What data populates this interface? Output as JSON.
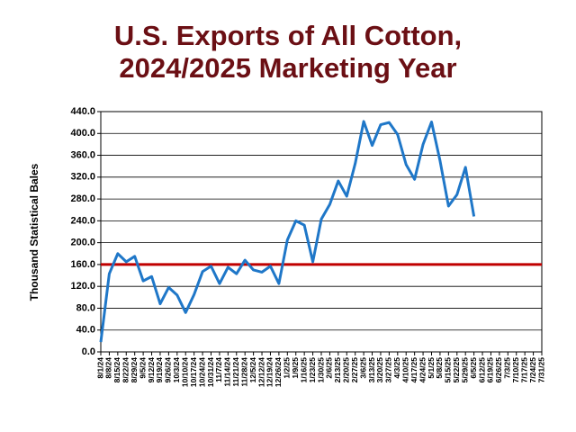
{
  "chart_data": {
    "type": "line",
    "title": [
      "U.S. Exports of All Cotton,",
      "2024/2025 Marketing Year"
    ],
    "y_label": "Thousand Statistical Bales",
    "categories": [
      "8/1/24",
      "8/8/24",
      "8/15/24",
      "8/22/24",
      "8/29/24",
      "9/5/24",
      "9/12/24",
      "9/19/24",
      "9/26/24",
      "10/3/24",
      "10/10/24",
      "10/17/24",
      "10/24/24",
      "10/31/24",
      "11/7/24",
      "11/14/24",
      "11/21/24",
      "11/28/24",
      "12/5/24",
      "12/12/24",
      "12/19/24",
      "12/26/24",
      "1/2/25",
      "1/9/25",
      "1/16/25",
      "1/23/25",
      "1/30/25",
      "2/6/25",
      "2/13/25",
      "2/20/25",
      "2/27/25",
      "3/6/25",
      "3/13/25",
      "3/20/25",
      "3/27/25",
      "4/3/25",
      "4/10/25",
      "4/17/25",
      "4/24/25",
      "5/1/25",
      "5/8/25",
      "5/15/25",
      "5/22/25",
      "5/29/25",
      "6/5/25",
      "6/12/25",
      "6/19/25",
      "6/26/25",
      "7/3/25",
      "7/10/25",
      "7/17/25",
      "7/24/25",
      "7/31/25"
    ],
    "series": [
      {
        "color": "#1f77c8",
        "values": [
          18,
          143,
          180,
          165,
          175,
          130,
          138,
          88,
          118,
          104,
          72,
          105,
          147,
          157,
          125,
          155,
          143,
          168,
          150,
          146,
          157,
          125,
          205,
          240,
          232,
          165,
          243,
          270,
          313,
          285,
          345,
          422,
          378,
          416,
          420,
          398,
          343,
          316,
          380,
          421,
          350,
          267,
          288,
          338,
          248,
          null,
          null,
          null,
          null,
          null,
          null,
          null,
          null
        ]
      }
    ],
    "reference_line": {
      "value": 160,
      "color": "#c00000"
    },
    "ylim": [
      0,
      440
    ],
    "yticks": [
      {
        "value": 0,
        "label": "0.0"
      },
      {
        "value": 40,
        "label": "40.0"
      },
      {
        "value": 80,
        "label": "80.0"
      },
      {
        "value": 120,
        "label": "120.0"
      },
      {
        "value": 160,
        "label": "160.0"
      },
      {
        "value": 200,
        "label": "200.0"
      },
      {
        "value": 240,
        "label": "240.0"
      },
      {
        "value": 280,
        "label": "280.0"
      },
      {
        "value": 320,
        "label": "320.0"
      },
      {
        "value": 360,
        "label": "360.0"
      },
      {
        "value": 400,
        "label": "400.0"
      },
      {
        "value": 440,
        "label": "440.0"
      }
    ],
    "grid": true
  }
}
